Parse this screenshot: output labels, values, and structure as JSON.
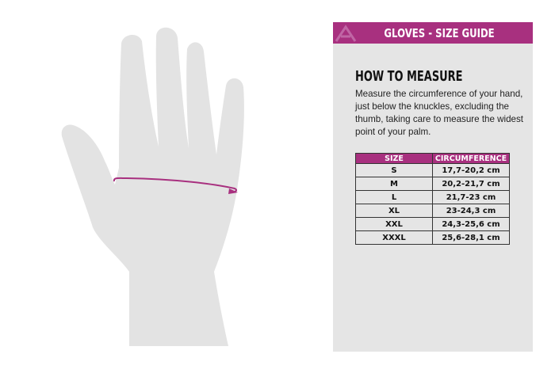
{
  "header": {
    "title": "GLOVES - SIZE GUIDE"
  },
  "measure": {
    "title": "HOW TO MEASURE",
    "text": "Measure the circumference of your hand, just below the knuckles, excluding the thumb, taking care to measure the widest point of your palm."
  },
  "table": {
    "columns": [
      "SIZE",
      "CIRCUMFERENCE"
    ],
    "rows": [
      [
        "S",
        "17,7-20,2 cm"
      ],
      [
        "M",
        "20,2-21,7 cm"
      ],
      [
        "L",
        "21,7-23 cm"
      ],
      [
        "XL",
        "23-24,3 cm"
      ],
      [
        "XXL",
        "24,3-25,6 cm"
      ],
      [
        "XXXL",
        "25,6-28,1 cm"
      ]
    ]
  },
  "colors": {
    "accent": "#a8307f",
    "panel": "#e5e5e5",
    "hand": "#e3e3e3"
  }
}
